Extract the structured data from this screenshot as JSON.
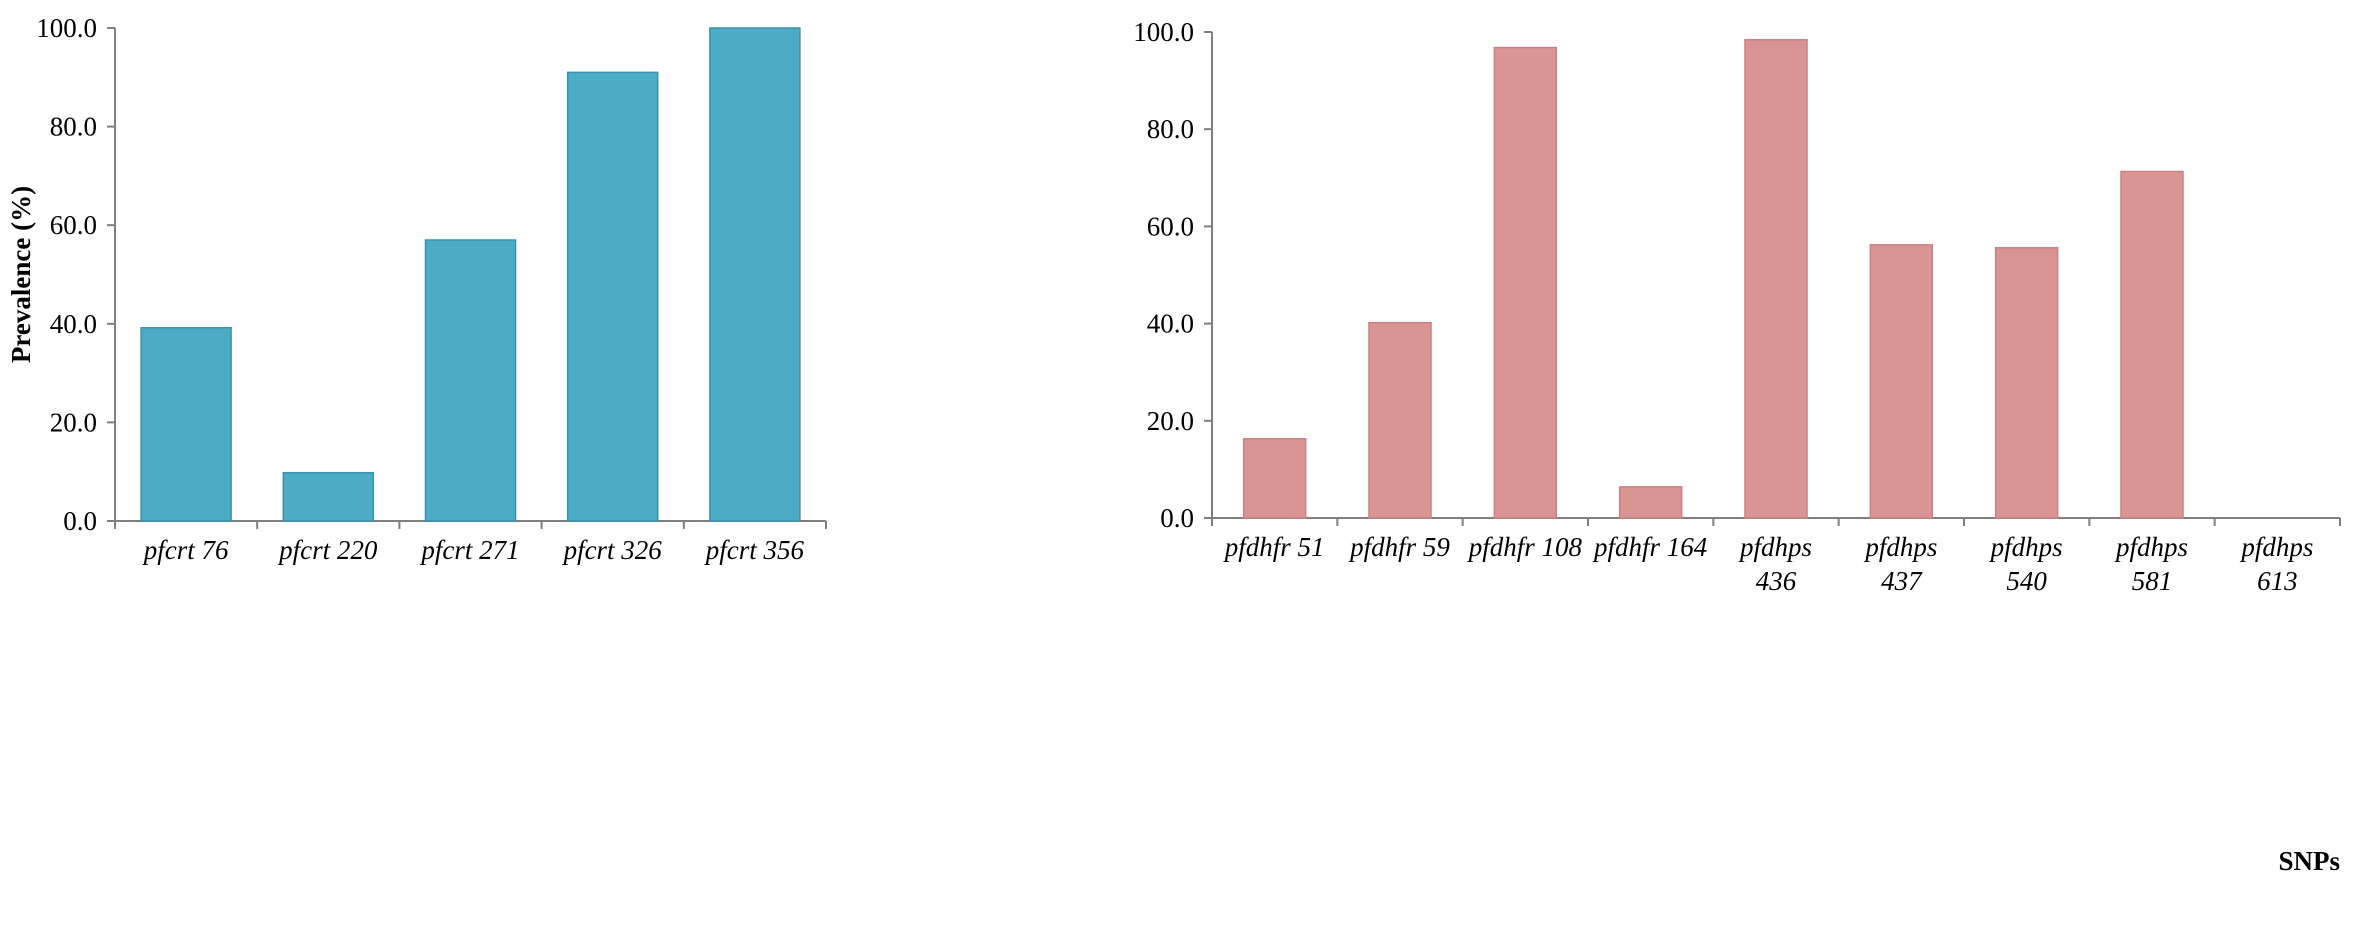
{
  "chart_data": [
    {
      "type": "bar",
      "ylabel": "Prevalence (%)",
      "xlabel": "",
      "ylim": [
        0,
        100
      ],
      "yticks": [
        "0.0",
        "20.0",
        "40.0",
        "60.0",
        "80.0",
        "100.0"
      ],
      "categories": [
        [
          "pfcrt 76"
        ],
        [
          "pfcrt 220"
        ],
        [
          "pfcrt 271"
        ],
        [
          "pfcrt 326"
        ],
        [
          "pfcrt 356"
        ]
      ],
      "values": [
        39.2,
        9.8,
        57.0,
        91.0,
        100.0
      ],
      "color": "#4BACC6",
      "grid": false
    },
    {
      "type": "bar",
      "ylabel": "",
      "xlabel": "SNPs",
      "ylim": [
        0,
        100
      ],
      "yticks": [
        "0.0",
        "20.0",
        "40.0",
        "60.0",
        "80.0",
        "100.0"
      ],
      "categories": [
        [
          "pfdhfr 51"
        ],
        [
          "pfdhfr 59"
        ],
        [
          "pfdhfr 108"
        ],
        [
          "pfdhfr 164"
        ],
        [
          "pfdhps",
          "436"
        ],
        [
          "pfdhps",
          "437"
        ],
        [
          "pfdhps",
          "540"
        ],
        [
          "pfdhps",
          "581"
        ],
        [
          "pfdhps",
          "613"
        ]
      ],
      "values": [
        16.3,
        40.2,
        96.8,
        6.4,
        98.4,
        56.2,
        55.6,
        71.3,
        0.0
      ],
      "color": "#D99594",
      "grid": false
    }
  ]
}
